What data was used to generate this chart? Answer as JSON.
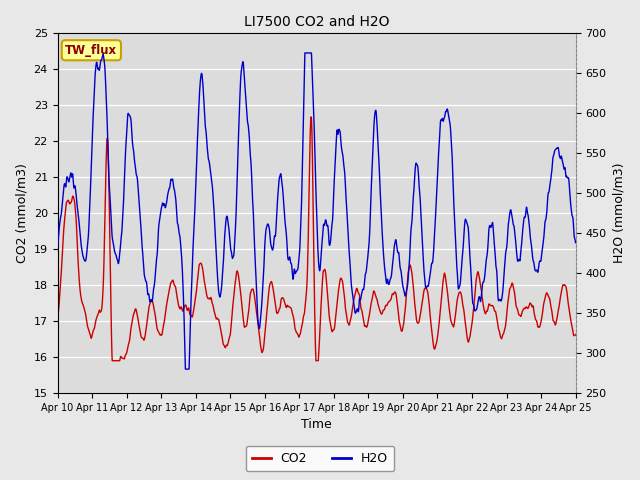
{
  "title": "LI7500 CO2 and H2O",
  "xlabel": "Time",
  "ylabel_left": "CO2 (mmol/m3)",
  "ylabel_right": "H2O (mmol/m3)",
  "ylim_left": [
    15.0,
    25.0
  ],
  "ylim_right": [
    250,
    700
  ],
  "yticks_left": [
    15.0,
    16.0,
    17.0,
    18.0,
    19.0,
    20.0,
    21.0,
    22.0,
    23.0,
    24.0,
    25.0
  ],
  "yticks_right": [
    250,
    300,
    350,
    400,
    450,
    500,
    550,
    600,
    650,
    700
  ],
  "xtick_labels": [
    "Apr 10",
    "Apr 11",
    "Apr 12",
    "Apr 13",
    "Apr 14",
    "Apr 15",
    "Apr 16",
    "Apr 17",
    "Apr 18",
    "Apr 19",
    "Apr 20",
    "Apr 21",
    "Apr 22",
    "Apr 23",
    "Apr 24",
    "Apr 25"
  ],
  "co2_color": "#cc0000",
  "h2o_color": "#0000cc",
  "bg_color": "#e8e8e8",
  "plot_bg_color": "#dcdcdc",
  "site_label": "TW_flux",
  "linewidth": 1.0,
  "title_fontsize": 10,
  "label_fontsize": 9,
  "tick_fontsize": 8
}
